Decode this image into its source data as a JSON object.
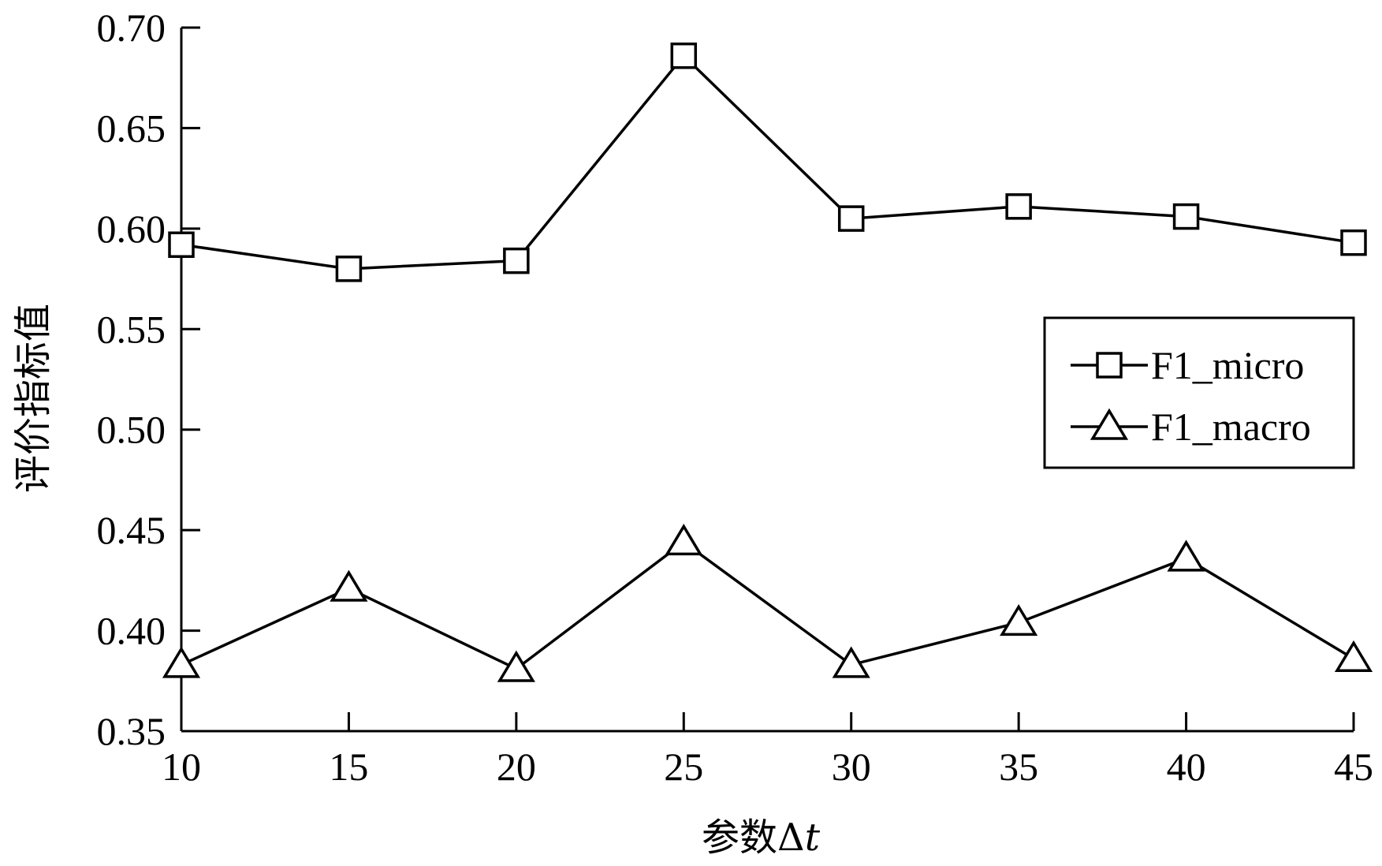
{
  "chart_data": {
    "type": "line",
    "title": "",
    "xlabel": "参数Δt",
    "xlabel_parts": {
      "prefix": "参数Δ",
      "italic": "t"
    },
    "ylabel": "评价指标值",
    "x": [
      10,
      15,
      20,
      25,
      30,
      35,
      40,
      45
    ],
    "xlim": [
      10,
      45
    ],
    "ylim": [
      0.35,
      0.7
    ],
    "x_ticks": [
      "10",
      "15",
      "20",
      "25",
      "30",
      "35",
      "40",
      "45"
    ],
    "y_ticks": [
      "0.70",
      "0.65",
      "0.60",
      "0.55",
      "0.50",
      "0.45",
      "0.40",
      "0.35"
    ],
    "y_tick_values": [
      0.7,
      0.65,
      0.6,
      0.55,
      0.5,
      0.45,
      0.4,
      0.35
    ],
    "grid": false,
    "legend_position": "right",
    "series": [
      {
        "name": "F1_micro",
        "marker": "square",
        "color": "#000000",
        "values": [
          0.592,
          0.58,
          0.584,
          0.686,
          0.605,
          0.611,
          0.606,
          0.593
        ]
      },
      {
        "name": "F1_macro",
        "marker": "triangle",
        "color": "#000000",
        "values": [
          0.383,
          0.421,
          0.381,
          0.444,
          0.383,
          0.404,
          0.436,
          0.386
        ]
      }
    ]
  }
}
